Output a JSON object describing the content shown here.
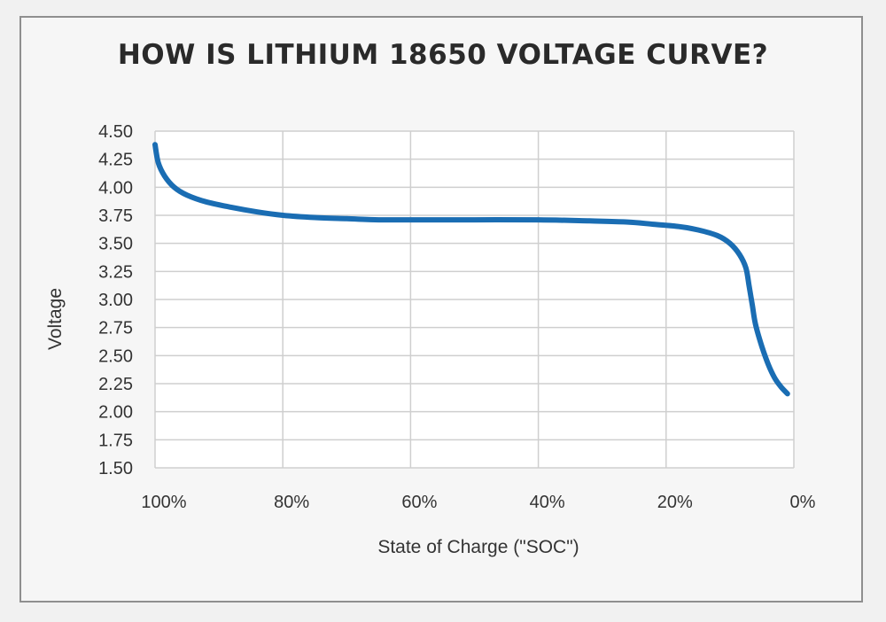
{
  "chart_data": {
    "type": "line",
    "title": "HOW IS LITHIUM 18650 VOLTAGE CURVE?",
    "xlabel": "State of Charge (\"SOC\")",
    "ylabel": "Voltage",
    "x_ticks": [
      100,
      80,
      60,
      40,
      20,
      0
    ],
    "x_tick_labels": [
      "100%",
      "80%",
      "60%",
      "40%",
      "20%",
      "0%"
    ],
    "x_direction": "descending",
    "ylim": [
      1.5,
      4.5
    ],
    "y_ticks": [
      1.5,
      1.75,
      2.0,
      2.25,
      2.5,
      2.75,
      3.0,
      3.25,
      3.5,
      3.75,
      4.0,
      4.25,
      4.5
    ],
    "y_tick_labels": [
      "1.50",
      "1.75",
      "2.00",
      "2.25",
      "2.50",
      "2.75",
      "3.00",
      "3.25",
      "3.50",
      "3.75",
      "4.00",
      "4.25",
      "4.50"
    ],
    "grid": true,
    "legend": "none",
    "series": [
      {
        "color": "#1a6db3",
        "points": [
          [
            100,
            4.38
          ],
          [
            99.5,
            4.22
          ],
          [
            98.5,
            4.1
          ],
          [
            97,
            4.0
          ],
          [
            95,
            3.93
          ],
          [
            92,
            3.87
          ],
          [
            88,
            3.82
          ],
          [
            84,
            3.78
          ],
          [
            80,
            3.75
          ],
          [
            75,
            3.73
          ],
          [
            70,
            3.72
          ],
          [
            65,
            3.71
          ],
          [
            60,
            3.71
          ],
          [
            50,
            3.71
          ],
          [
            40,
            3.71
          ],
          [
            32,
            3.7
          ],
          [
            26,
            3.69
          ],
          [
            22,
            3.67
          ],
          [
            18,
            3.65
          ],
          [
            15,
            3.62
          ],
          [
            12,
            3.57
          ],
          [
            10,
            3.5
          ],
          [
            8.5,
            3.4
          ],
          [
            7.5,
            3.28
          ],
          [
            7,
            3.12
          ],
          [
            6.5,
            2.95
          ],
          [
            6,
            2.78
          ],
          [
            5,
            2.58
          ],
          [
            4,
            2.42
          ],
          [
            3,
            2.3
          ],
          [
            2,
            2.22
          ],
          [
            1,
            2.16
          ]
        ]
      }
    ]
  }
}
